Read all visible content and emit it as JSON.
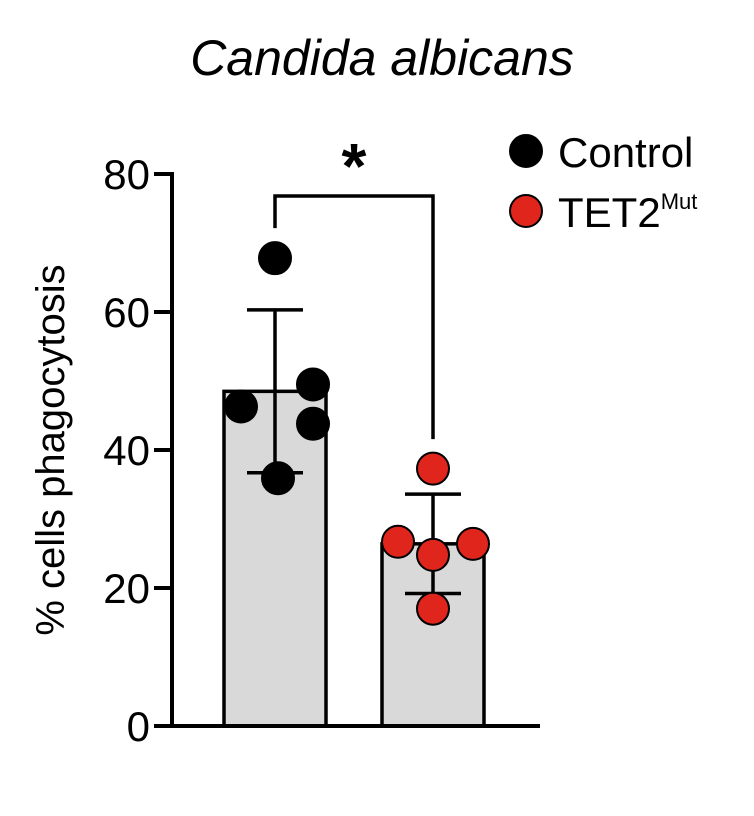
{
  "chart_data": {
    "type": "bar",
    "title": "Candida albicans",
    "xlabel": "",
    "ylabel": "% cells phagocytosis",
    "ylim": [
      0,
      80
    ],
    "yticks": [
      0,
      20,
      40,
      60,
      80
    ],
    "ytick_labels": [
      "0",
      "20",
      "40",
      "60",
      "80"
    ],
    "legend_position": "top-right",
    "series": [
      {
        "name": "Control",
        "mean": 48.5,
        "sd": 11.8,
        "points": [
          67.8,
          49.5,
          46.3,
          43.8,
          35.9
        ],
        "bar_color": "#d9d9d9",
        "point_color": "#000000"
      },
      {
        "name": "TET2",
        "name_superscript": "Mut",
        "mean": 26.4,
        "sd": 7.2,
        "points": [
          37.3,
          26.7,
          26.4,
          24.8,
          17.0
        ],
        "bar_color": "#d9d9d9",
        "point_color": "#e0261c"
      }
    ],
    "significance": {
      "between": [
        "Control",
        "TET2"
      ],
      "label": "*"
    }
  }
}
